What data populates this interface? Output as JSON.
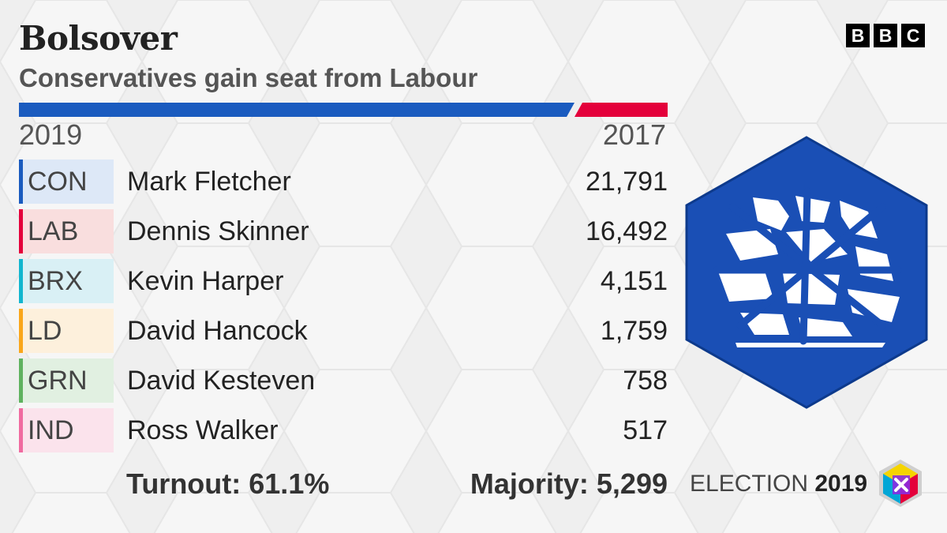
{
  "header": {
    "constituency": "Bolsover",
    "result": "Conservatives gain seat from Labour"
  },
  "brand": {
    "letters": [
      "B",
      "B",
      "C"
    ]
  },
  "years": {
    "current": "2019",
    "previous": "2017"
  },
  "colors": {
    "con": "#1a5bbf",
    "lab": "#e4003b",
    "brx": "#12b6cf",
    "ld": "#faa61a",
    "grn": "#5fb25f",
    "ind": "#f06ba0"
  },
  "results": [
    {
      "party": "CON",
      "candidate": "Mark Fletcher",
      "votes": "21,791",
      "color": "#1a5bbf",
      "tint": "#dde8f7"
    },
    {
      "party": "LAB",
      "candidate": "Dennis Skinner",
      "votes": "16,492",
      "color": "#e4003b",
      "tint": "#f9dede"
    },
    {
      "party": "BRX",
      "candidate": "Kevin Harper",
      "votes": "4,151",
      "color": "#12b6cf",
      "tint": "#d9f0f5"
    },
    {
      "party": "LD",
      "candidate": "David Hancock",
      "votes": "1,759",
      "color": "#faa61a",
      "tint": "#fdf0dc"
    },
    {
      "party": "GRN",
      "candidate": "David Kesteven",
      "votes": "758",
      "color": "#5fb25f",
      "tint": "#e1f0e1"
    },
    {
      "party": "IND",
      "candidate": "Ross Walker",
      "votes": "517",
      "color": "#f06ba0",
      "tint": "#fbe3ec"
    }
  ],
  "footer": {
    "turnout": "Turnout: 61.1%",
    "majority": "Majority: 5,299",
    "election_word": "ELECTION",
    "election_year": "2019"
  },
  "icons": {
    "party_logo": "conservative-tree-logo-icon",
    "election_badge": "election-x-cube-icon"
  }
}
